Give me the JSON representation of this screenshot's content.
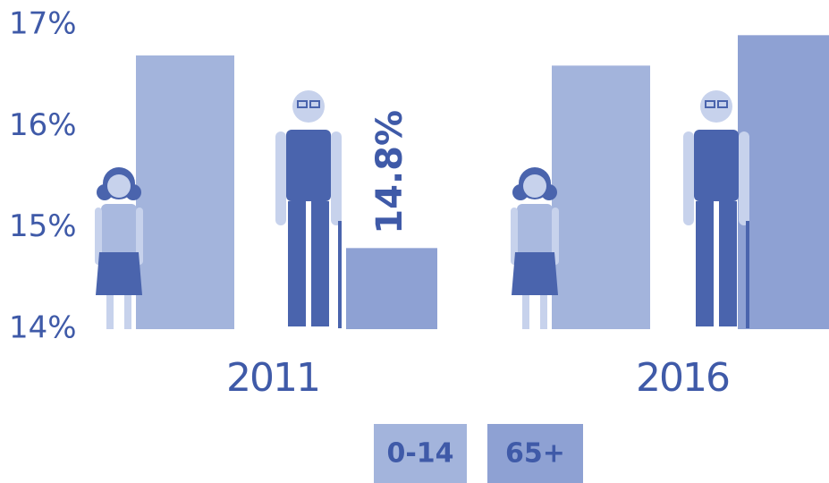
{
  "chart_data": {
    "type": "bar",
    "categories": [
      "2011",
      "2016"
    ],
    "series": [
      {
        "name": "0-14",
        "color": "#a3b4dc",
        "values": [
          16.7,
          16.6
        ],
        "value_labels": [
          "16.7%",
          "16.6%"
        ]
      },
      {
        "name": "65+",
        "color": "#8ea1d3",
        "values": [
          14.8,
          16.9
        ],
        "value_labels": [
          "14.8%",
          "16.9%"
        ]
      }
    ],
    "ylim": [
      14,
      17
    ],
    "yticks": [
      {
        "value": 14,
        "label": "14%"
      },
      {
        "value": 15,
        "label": "15%"
      },
      {
        "value": 16,
        "label": "16%"
      },
      {
        "value": 17,
        "label": "17%"
      }
    ]
  }
}
